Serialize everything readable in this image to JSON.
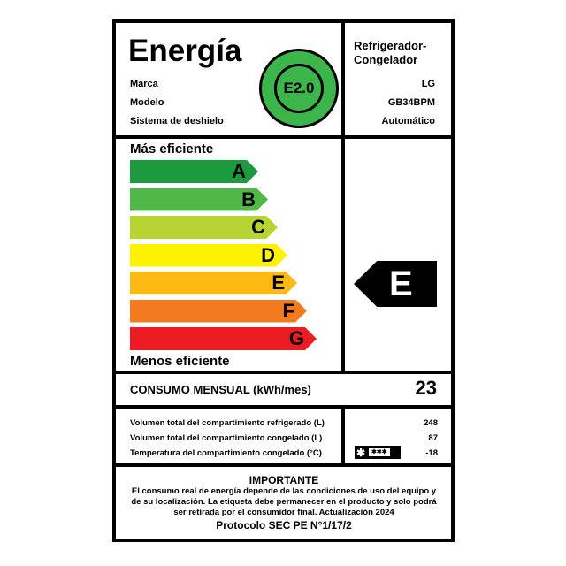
{
  "header": {
    "title": "Energía",
    "appliance_type": "Refrigerador-Congelador",
    "badge": "E2.0",
    "badge_color": "#3cb54a"
  },
  "specs": [
    {
      "label": "Marca",
      "value": "LG"
    },
    {
      "label": "Modelo",
      "value": "GB34BPM"
    },
    {
      "label": "Sistema de deshielo",
      "value": "Automático"
    }
  ],
  "scale": {
    "top_label": "Más eficiente",
    "bottom_label": "Menos eficiente",
    "classes": [
      {
        "letter": "A",
        "color": "#1b9a3e"
      },
      {
        "letter": "B",
        "color": "#50b848"
      },
      {
        "letter": "C",
        "color": "#b7d432"
      },
      {
        "letter": "D",
        "color": "#fff200"
      },
      {
        "letter": "E",
        "color": "#fdb913"
      },
      {
        "letter": "F",
        "color": "#f47a20"
      },
      {
        "letter": "G",
        "color": "#ed1c24"
      }
    ],
    "rating": "E"
  },
  "consumption": {
    "label": "CONSUMO MENSUAL (kWh/mes)",
    "value": "23"
  },
  "details": [
    {
      "label": "Volumen total del compartimiento refrigerado (L)",
      "value": "248"
    },
    {
      "label": "Volumen total del compartimiento congelado (L)",
      "value": "87"
    },
    {
      "label": "Temperatura del compartimiento congelado (°C)",
      "value": "-18",
      "icon": "freezer-star-rating-icon",
      "stars": "✱✱✱"
    }
  ],
  "important": {
    "title": "IMPORTANTE",
    "text": [
      "El consumo real de energía depende de las condiciones de uso del equipo y",
      "de su localización. La etiqueta debe permanecer en el producto y solo podrá",
      "ser retirada por el consumidor final. Actualización 2024"
    ],
    "protocol": "Protocolo SEC PE N°1/17/2"
  }
}
